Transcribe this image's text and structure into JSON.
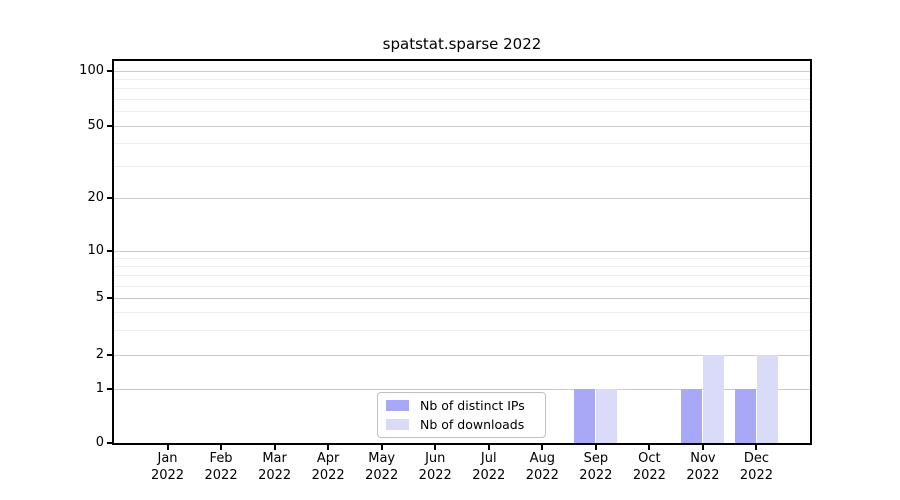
{
  "chart_data": {
    "type": "bar",
    "title": "spatstat.sparse 2022",
    "categories": [
      "Jan 2022",
      "Feb 2022",
      "Mar 2022",
      "Apr 2022",
      "May 2022",
      "Jun 2022",
      "Jul 2022",
      "Aug 2022",
      "Sep 2022",
      "Oct 2022",
      "Nov 2022",
      "Dec 2022"
    ],
    "series": [
      {
        "name": "Nb of distinct IPs",
        "color": "#a8a8f6",
        "values": [
          0,
          0,
          0,
          0,
          0,
          0,
          0,
          0,
          1,
          0,
          1,
          1
        ]
      },
      {
        "name": "Nb of downloads",
        "color": "#dadaf9",
        "values": [
          0,
          0,
          0,
          0,
          0,
          0,
          0,
          0,
          1,
          0,
          2,
          2
        ]
      }
    ],
    "xlabel": "",
    "ylabel": "",
    "y_axis": {
      "scale": "symlog",
      "major_ticks": [
        0,
        1,
        2,
        5,
        10,
        20,
        50,
        100
      ],
      "minor_ticks": [
        3,
        4,
        6,
        7,
        8,
        9,
        30,
        40,
        60,
        70,
        80,
        90
      ],
      "ylim": [
        0,
        113
      ]
    },
    "grid": {
      "major": true,
      "minor": true,
      "orientation": "horizontal"
    },
    "legend": {
      "visible": true,
      "position": "lower center inside"
    },
    "colors": {
      "axis": "#000000",
      "major_grid": "#cccccc",
      "minor_grid": "#ededed",
      "background": "#ffffff",
      "text": "#000000"
    }
  }
}
